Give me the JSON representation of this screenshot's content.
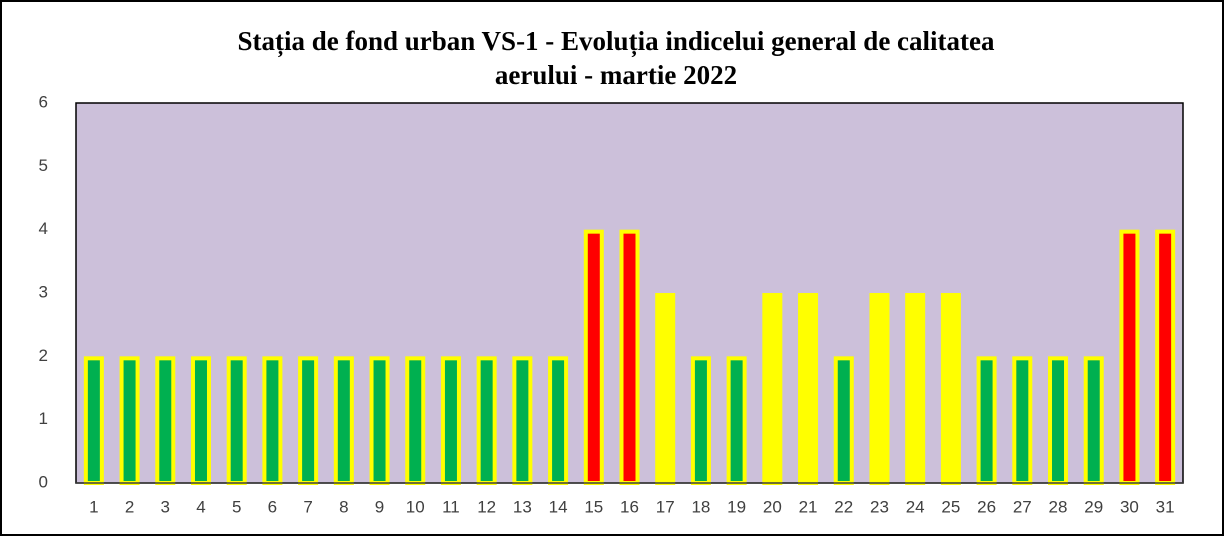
{
  "chart_data": {
    "type": "bar",
    "title": [
      "Stația de fond urban VS-1 - Evoluția indicelui general de calitatea",
      "aerului - martie 2022"
    ],
    "categories": [
      "1",
      "2",
      "3",
      "4",
      "5",
      "6",
      "7",
      "8",
      "9",
      "10",
      "11",
      "12",
      "13",
      "14",
      "15",
      "16",
      "17",
      "18",
      "19",
      "20",
      "21",
      "22",
      "23",
      "24",
      "25",
      "26",
      "27",
      "28",
      "29",
      "30",
      "31"
    ],
    "values": [
      2,
      2,
      2,
      2,
      2,
      2,
      2,
      2,
      2,
      2,
      2,
      2,
      2,
      2,
      4,
      4,
      3,
      2,
      2,
      3,
      3,
      2,
      3,
      3,
      3,
      2,
      2,
      2,
      2,
      4,
      4
    ],
    "colors": [
      "#00b050",
      "#00b050",
      "#00b050",
      "#00b050",
      "#00b050",
      "#00b050",
      "#00b050",
      "#00b050",
      "#00b050",
      "#00b050",
      "#00b050",
      "#00b050",
      "#00b050",
      "#00b050",
      "#ff0000",
      "#ff0000",
      "#ffff00",
      "#00b050",
      "#00b050",
      "#ffff00",
      "#ffff00",
      "#00b050",
      "#ffff00",
      "#ffff00",
      "#ffff00",
      "#00b050",
      "#00b050",
      "#00b050",
      "#00b050",
      "#ff0000",
      "#ff0000"
    ],
    "edgecolor": "#ffff00",
    "plot_background": "#ccc0da",
    "ylim": [
      0,
      6
    ],
    "yticks": [
      0,
      1,
      2,
      3,
      4,
      5,
      6
    ],
    "grid": false
  }
}
